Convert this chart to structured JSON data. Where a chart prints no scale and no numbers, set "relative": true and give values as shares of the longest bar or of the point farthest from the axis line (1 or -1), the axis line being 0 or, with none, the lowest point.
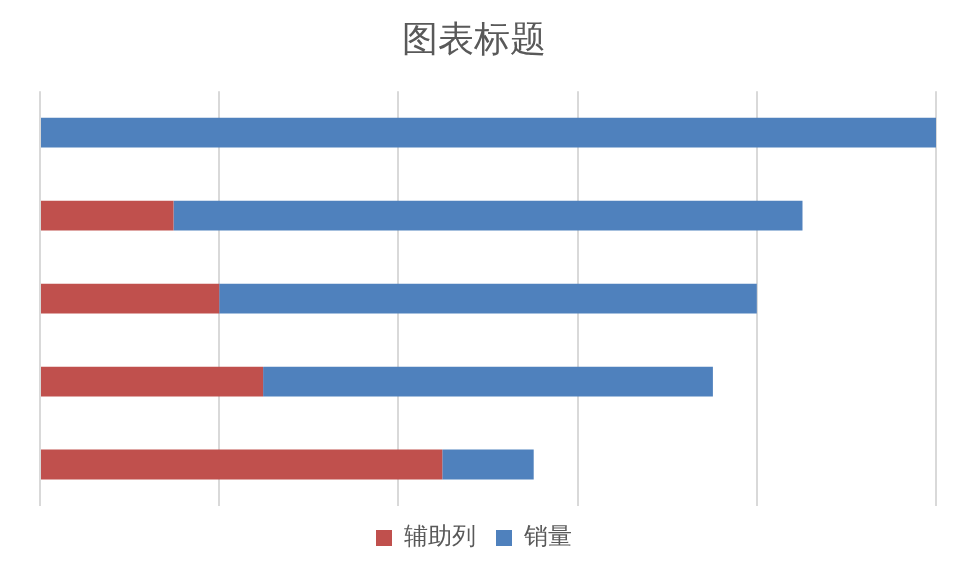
{
  "chart_data": {
    "type": "bar",
    "title": "图表标题",
    "orientation": "horizontal",
    "stacked": true,
    "relative": true,
    "grid": "x",
    "legend": "bottom",
    "categories": [
      null,
      null,
      null,
      null,
      null
    ],
    "series": [
      {
        "name": "辅助列",
        "color": "#c0504d",
        "values": [
          0,
          0.149,
          0.2,
          0.249,
          0.449
        ]
      },
      {
        "name": "销量",
        "color": "#4f81bd",
        "values": [
          1,
          0.702,
          0.6,
          0.502,
          0.102
        ]
      }
    ]
  }
}
